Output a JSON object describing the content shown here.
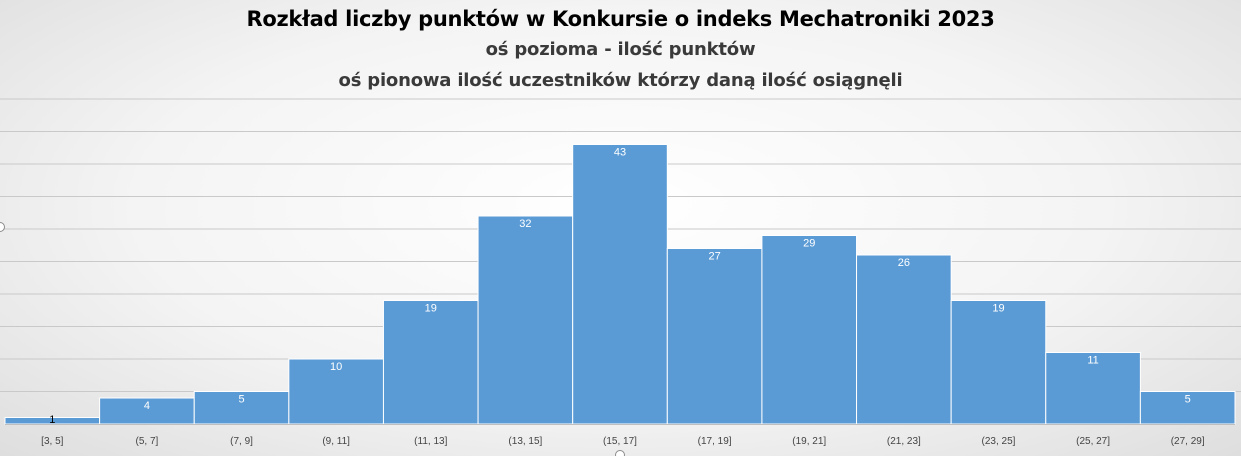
{
  "chart_data": {
    "type": "bar",
    "title": "Rozkład liczby punktów w Konkursie o indeks Mechatroniki 2023",
    "subtitle_lines": [
      "oś pozioma - ilość punktów",
      "oś pionowa ilość uczestników którzy daną ilość osiągnęli"
    ],
    "categories": [
      "[3, 5]",
      "(5, 7]",
      "(7, 9]",
      "(9, 11]",
      "(11, 13]",
      "(13, 15]",
      "(15, 17]",
      "(17, 19]",
      "(19, 21]",
      "(21, 23]",
      "(23, 25]",
      "(25, 27]",
      "(27, 29]"
    ],
    "values": [
      1,
      4,
      5,
      10,
      19,
      32,
      43,
      27,
      29,
      26,
      19,
      11,
      5
    ],
    "xlabel": "",
    "ylabel": "",
    "ylim": [
      0,
      50
    ],
    "grid": true,
    "gridline_step": 5,
    "legend": "none",
    "bar_color": "#5b9bd5",
    "label_color": "#ffffff",
    "gridline_color": "#c9c9c9"
  }
}
